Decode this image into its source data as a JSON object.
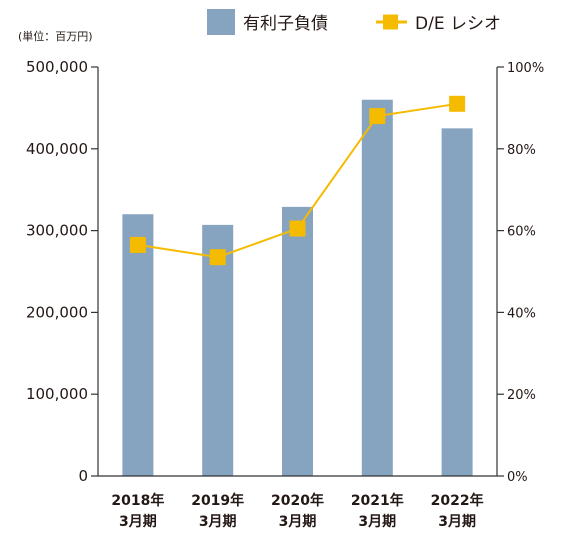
{
  "unit_label": "(単位：百万円)",
  "legend": {
    "bar_label": "有利子負債",
    "line_label": "D/E レシオ"
  },
  "colors": {
    "bar": "#86a3c0",
    "line": "#f5bb00",
    "axis": "#333333",
    "text": "#231815"
  },
  "chart_data": {
    "type": "bar",
    "categories": [
      [
        "2018年",
        "3月期"
      ],
      [
        "2019年",
        "3月期"
      ],
      [
        "2020年",
        "3月期"
      ],
      [
        "2021年",
        "3月期"
      ],
      [
        "2022年",
        "3月期"
      ]
    ],
    "series": [
      {
        "name": "有利子負債",
        "type": "bar",
        "axis": "left",
        "values": [
          320000,
          307000,
          329000,
          460000,
          425000
        ]
      },
      {
        "name": "D/E レシオ",
        "type": "line",
        "axis": "right",
        "values": [
          56.5,
          53.5,
          60.5,
          88,
          91
        ]
      }
    ],
    "y_left": {
      "min": 0,
      "max": 500000,
      "ticks": [
        0,
        100000,
        200000,
        300000,
        400000,
        500000
      ],
      "tick_labels": [
        "0",
        "100,000",
        "200,000",
        "300,000",
        "400,000",
        "500,000"
      ]
    },
    "y_right": {
      "min": 0,
      "max": 100,
      "ticks": [
        0,
        20,
        40,
        60,
        80,
        100
      ],
      "tick_labels": [
        "0%",
        "20%",
        "40%",
        "60%",
        "80%",
        "100%"
      ]
    },
    "grid": false,
    "legend_position": "top-right"
  }
}
